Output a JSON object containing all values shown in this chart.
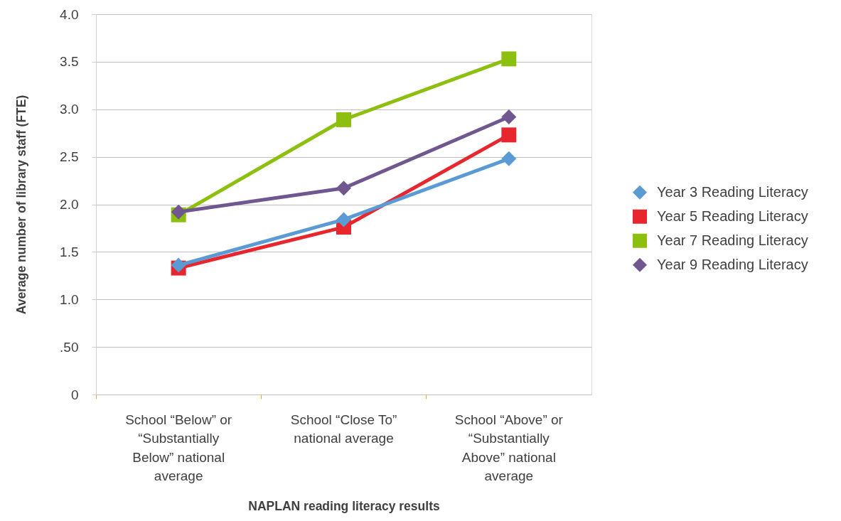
{
  "chart_data": {
    "type": "line",
    "xlabel": "NAPLAN reading literacy results",
    "ylabel": "Average number of library staff (FTE)",
    "categories": [
      "School “Below” or “Substantially Below” national average",
      "School “Close To” national average",
      "School “Above” or “Substantially Above” national average"
    ],
    "series": [
      {
        "name": "Year 3 Reading Literacy",
        "color": "#5b9bd5",
        "marker": "diamond",
        "values": [
          1.36,
          1.84,
          2.48
        ]
      },
      {
        "name": "Year 5 Reading Literacy",
        "color": "#e8262e",
        "marker": "square",
        "values": [
          1.33,
          1.76,
          2.73
        ]
      },
      {
        "name": "Year 7 Reading Literacy",
        "color": "#8cbf0e",
        "marker": "square",
        "values": [
          1.89,
          2.89,
          3.53
        ]
      },
      {
        "name": "Year 9 Reading Literacy",
        "color": "#70578f",
        "marker": "diamond",
        "values": [
          1.92,
          2.17,
          2.92
        ]
      }
    ],
    "ylim": [
      0,
      4
    ],
    "yticks": [
      0,
      {
        "value": 0.5,
        "label": ".50"
      },
      {
        "value": 1,
        "label": "1.0"
      },
      1.5,
      {
        "value": 2,
        "label": "2.0"
      },
      2.5,
      {
        "value": 3,
        "label": "3.0"
      },
      3.5,
      {
        "value": 4,
        "label": "4.0"
      }
    ],
    "grid": "y",
    "legend": "right",
    "line_style": "solid"
  }
}
